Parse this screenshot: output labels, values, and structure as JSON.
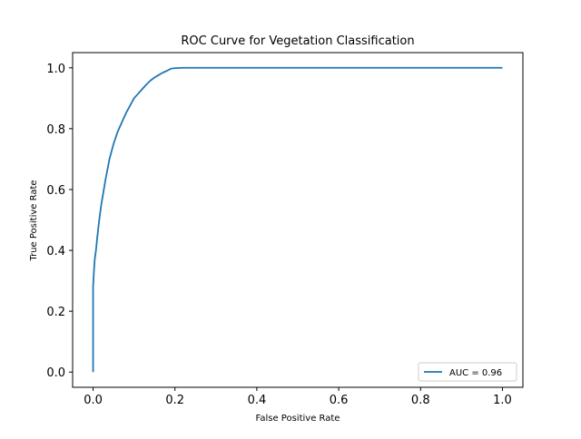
{
  "chart_data": {
    "type": "line",
    "title": "ROC Curve for Vegetation Classification",
    "xlabel": "False Positive Rate",
    "ylabel": "True Positive Rate",
    "xlim": [
      -0.05,
      1.05
    ],
    "ylim": [
      -0.05,
      1.05
    ],
    "xticks": [
      0.0,
      0.2,
      0.4,
      0.6,
      0.8,
      1.0
    ],
    "xtick_labels": [
      "0.0",
      "0.2",
      "0.4",
      "0.6",
      "0.8",
      "1.0"
    ],
    "yticks": [
      0.0,
      0.2,
      0.4,
      0.6,
      0.8,
      1.0
    ],
    "ytick_labels": [
      "0.0",
      "0.2",
      "0.4",
      "0.6",
      "0.8",
      "1.0"
    ],
    "grid": false,
    "legend_position": "lower right",
    "series": [
      {
        "name": "AUC = 0.96",
        "color": "#1f77b4",
        "x": [
          0.0,
          0.0,
          0.0,
          0.002,
          0.004,
          0.007,
          0.01,
          0.015,
          0.02,
          0.025,
          0.03,
          0.04,
          0.05,
          0.06,
          0.07,
          0.08,
          0.09,
          0.1,
          0.11,
          0.12,
          0.13,
          0.14,
          0.15,
          0.16,
          0.17,
          0.18,
          0.19,
          0.2,
          0.22,
          0.25,
          0.3,
          0.4,
          0.5,
          0.6,
          0.7,
          0.8,
          0.9,
          1.0
        ],
        "y": [
          0.0,
          0.2,
          0.28,
          0.33,
          0.37,
          0.4,
          0.44,
          0.5,
          0.55,
          0.59,
          0.63,
          0.7,
          0.75,
          0.79,
          0.82,
          0.85,
          0.875,
          0.9,
          0.915,
          0.93,
          0.945,
          0.958,
          0.968,
          0.976,
          0.984,
          0.99,
          0.997,
          0.999,
          1.0,
          1.0,
          1.0,
          1.0,
          1.0,
          1.0,
          1.0,
          1.0,
          1.0,
          1.0
        ]
      }
    ]
  }
}
